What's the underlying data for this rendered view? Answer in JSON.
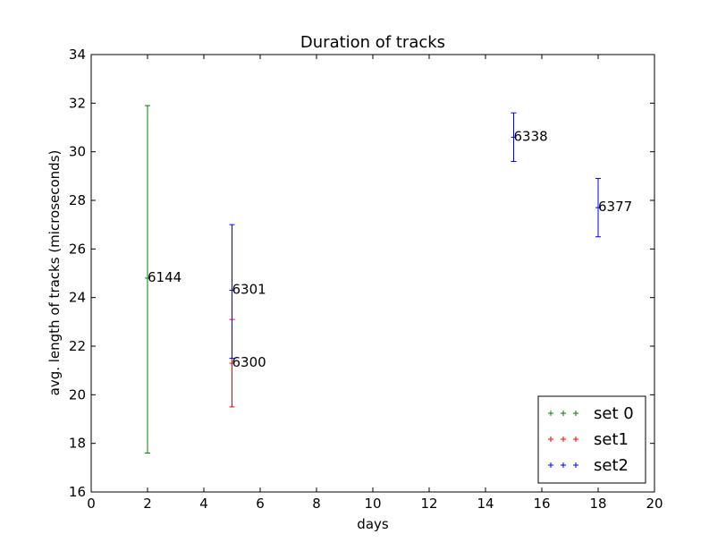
{
  "chart_data": {
    "type": "scatter",
    "title": "Duration of tracks",
    "xlabel": "days",
    "ylabel": "avg. length of tracks (microseconds)",
    "xlim": [
      0,
      20
    ],
    "ylim": [
      16,
      34
    ],
    "xticks": [
      0,
      2,
      4,
      6,
      8,
      10,
      12,
      14,
      16,
      18,
      20
    ],
    "yticks": [
      16,
      18,
      20,
      22,
      24,
      26,
      28,
      30,
      32,
      34
    ],
    "grid": false,
    "legend_position": "lower-right",
    "series": [
      {
        "name": "set 0",
        "color": "#008000",
        "points": [
          {
            "x": 2,
            "y": 24.8,
            "err_low": 17.6,
            "err_high": 31.9,
            "label": "6144"
          }
        ]
      },
      {
        "name": "set1",
        "color": "#ff0000",
        "points": [
          {
            "x": 5,
            "y": 21.3,
            "err_low": 19.5,
            "err_high": 23.1,
            "label": "6300"
          }
        ]
      },
      {
        "name": "set2",
        "color": "#0000ff",
        "points": [
          {
            "x": 5,
            "y": 24.3,
            "err_low": 21.5,
            "err_high": 27.0,
            "label": "6301"
          },
          {
            "x": 15,
            "y": 30.6,
            "err_low": 29.6,
            "err_high": 31.6,
            "label": "6338"
          },
          {
            "x": 18,
            "y": 27.7,
            "err_low": 26.5,
            "err_high": 28.9,
            "label": "6377"
          }
        ]
      }
    ]
  }
}
